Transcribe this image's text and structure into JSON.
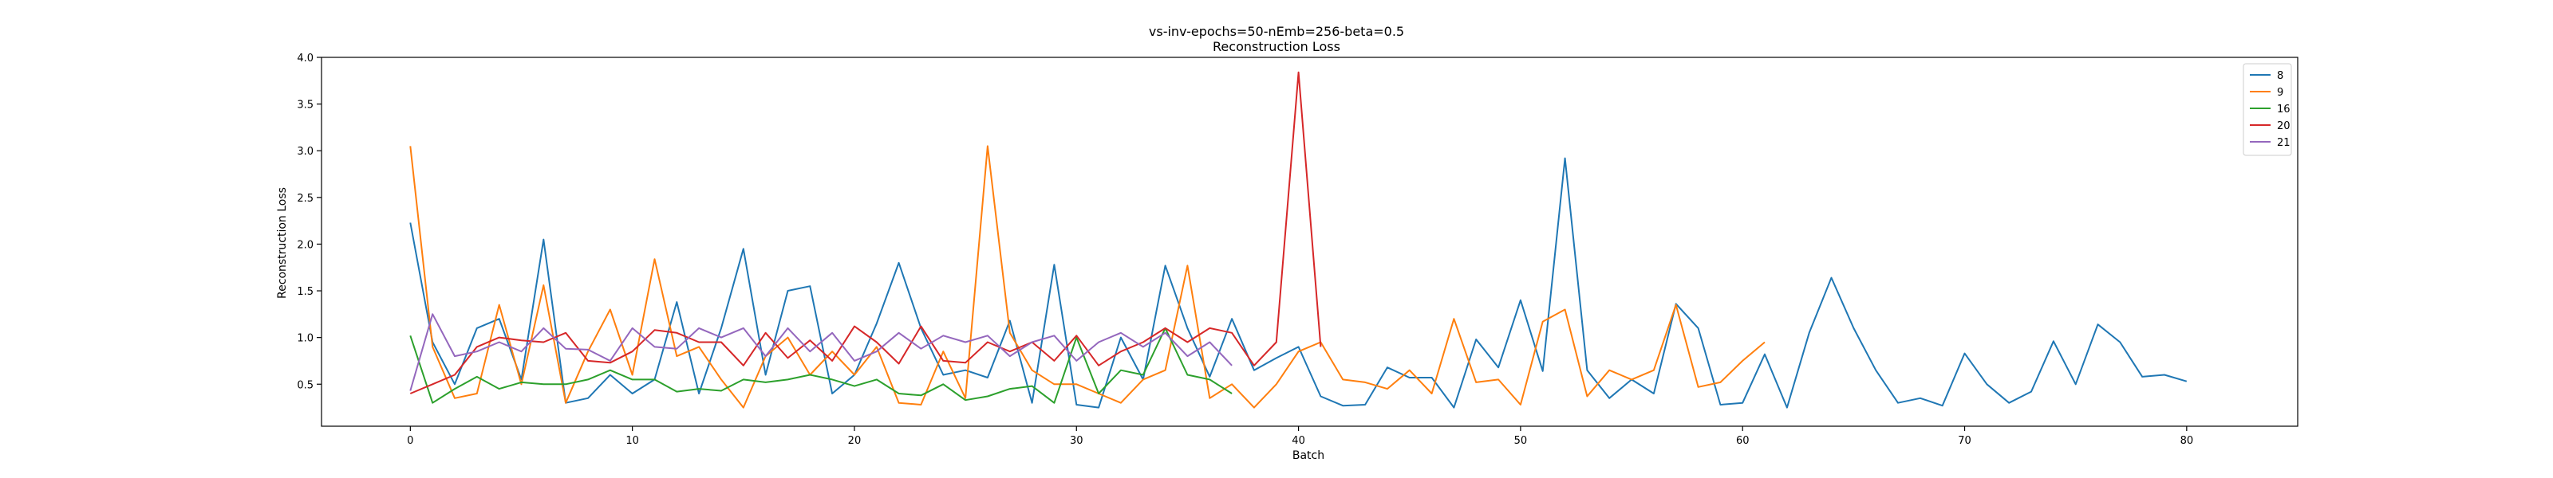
{
  "chart_data": {
    "type": "line",
    "title": "vs-inv-epochs=50-nEmb=256-beta=0.5",
    "subtitle": "Reconstruction Loss",
    "xlabel": "Batch",
    "ylabel": "Reconstruction Loss",
    "xlim": [
      -4,
      85
    ],
    "ylim": [
      0.05,
      4.0
    ],
    "xticks": [
      0,
      10,
      20,
      30,
      40,
      50,
      60,
      70,
      80
    ],
    "yticks": [
      0.5,
      1.0,
      1.5,
      2.0,
      2.5,
      3.0,
      3.5,
      4.0
    ],
    "xtick_labels": [
      "0",
      "10",
      "20",
      "30",
      "40",
      "50",
      "60",
      "70",
      "80"
    ],
    "ytick_labels": [
      "0.5",
      "1.0",
      "1.5",
      "2.0",
      "2.5",
      "3.0",
      "3.5",
      "4.0"
    ],
    "grid": false,
    "legend_position": "top-right",
    "series": [
      {
        "name": "8",
        "color": "#1f77b4",
        "values": [
          2.23,
          0.95,
          0.5,
          1.1,
          1.2,
          0.55,
          2.05,
          0.3,
          0.35,
          0.6,
          0.4,
          0.55,
          1.38,
          0.4,
          1.1,
          1.95,
          0.6,
          1.5,
          1.55,
          0.4,
          0.6,
          1.15,
          1.8,
          1.1,
          0.6,
          0.65,
          0.57,
          1.18,
          0.3,
          1.78,
          0.28,
          0.25,
          1.0,
          0.55,
          1.77,
          1.1,
          0.58,
          1.2,
          0.65,
          0.78,
          0.9,
          0.37,
          0.27,
          0.28,
          0.68,
          0.57,
          0.57,
          0.25,
          0.98,
          0.68,
          1.4,
          0.64,
          2.92,
          0.65,
          0.35,
          0.55,
          0.4,
          1.36,
          1.1,
          0.28,
          0.3,
          0.82,
          0.25,
          1.05,
          1.64,
          1.1,
          0.65,
          0.3,
          0.35,
          0.27,
          0.83,
          0.5,
          0.3,
          0.42,
          0.96,
          0.5,
          1.14,
          0.95,
          0.58,
          0.6,
          0.53
        ]
      },
      {
        "name": "9",
        "color": "#ff7f0e",
        "values": [
          3.05,
          0.9,
          0.35,
          0.4,
          1.35,
          0.5,
          1.56,
          0.3,
          0.85,
          1.3,
          0.6,
          1.84,
          0.8,
          0.9,
          0.55,
          0.25,
          0.8,
          1.0,
          0.6,
          0.85,
          0.6,
          0.9,
          0.3,
          0.28,
          0.85,
          0.35,
          3.05,
          1.05,
          0.65,
          0.5,
          0.5,
          0.4,
          0.3,
          0.55,
          0.65,
          1.77,
          0.35,
          0.5,
          0.25,
          0.5,
          0.85,
          0.95,
          0.55,
          0.52,
          0.45,
          0.65,
          0.4,
          1.2,
          0.52,
          0.55,
          0.28,
          1.17,
          1.3,
          0.37,
          0.65,
          0.55,
          0.65,
          1.35,
          0.47,
          0.52,
          0.75,
          0.95
        ]
      },
      {
        "name": "16",
        "color": "#2ca02c",
        "values": [
          1.02,
          0.3,
          0.45,
          0.58,
          0.45,
          0.52,
          0.5,
          0.5,
          0.55,
          0.65,
          0.55,
          0.55,
          0.42,
          0.45,
          0.43,
          0.55,
          0.52,
          0.55,
          0.6,
          0.55,
          0.48,
          0.55,
          0.4,
          0.38,
          0.5,
          0.33,
          0.37,
          0.45,
          0.48,
          0.3,
          1.0,
          0.4,
          0.65,
          0.6,
          1.1,
          0.6,
          0.55,
          0.4
        ]
      },
      {
        "name": "20",
        "color": "#d62728",
        "values": [
          0.4,
          0.5,
          0.6,
          0.9,
          1.0,
          0.97,
          0.95,
          1.05,
          0.75,
          0.73,
          0.85,
          1.08,
          1.05,
          0.95,
          0.95,
          0.7,
          1.05,
          0.78,
          0.97,
          0.75,
          1.12,
          0.95,
          0.72,
          1.12,
          0.75,
          0.73,
          0.95,
          0.85,
          0.95,
          0.75,
          1.02,
          0.7,
          0.85,
          0.95,
          1.1,
          0.95,
          1.1,
          1.05,
          0.7,
          0.95,
          3.84,
          0.9
        ]
      },
      {
        "name": "21",
        "color": "#9467bd",
        "values": [
          0.43,
          1.25,
          0.8,
          0.85,
          0.95,
          0.85,
          1.1,
          0.88,
          0.87,
          0.75,
          1.1,
          0.9,
          0.88,
          1.1,
          1.0,
          1.1,
          0.8,
          1.1,
          0.85,
          1.05,
          0.75,
          0.85,
          1.05,
          0.88,
          1.02,
          0.95,
          1.02,
          0.8,
          0.95,
          1.02,
          0.75,
          0.95,
          1.05,
          0.9,
          1.05,
          0.8,
          0.95,
          0.7
        ]
      }
    ]
  }
}
